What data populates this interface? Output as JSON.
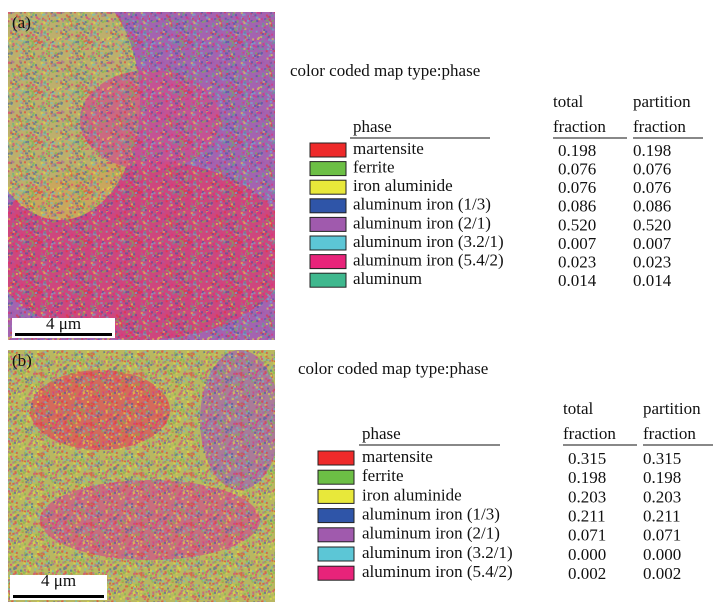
{
  "panels": [
    {
      "label": "(a)",
      "scale_bar": "4 μm",
      "legend_title": "color coded map type:phase",
      "columns": {
        "phase": "phase",
        "total": [
          "total",
          "fraction"
        ],
        "partition": [
          "partition",
          "fraction"
        ]
      },
      "rows": [
        {
          "name": "martensite",
          "color": "#ee2a2a",
          "total": "0.198",
          "partition": "0.198"
        },
        {
          "name": "ferrite",
          "color": "#6cbf45",
          "total": "0.076",
          "partition": "0.076"
        },
        {
          "name": "iron aluminide",
          "color": "#e8e83a",
          "total": "0.076",
          "partition": "0.076"
        },
        {
          "name": "aluminum iron (1/3)",
          "color": "#2f55a8",
          "total": "0.086",
          "partition": "0.086"
        },
        {
          "name": "aluminum iron (2/1)",
          "color": "#a05aad",
          "total": "0.520",
          "partition": "0.520"
        },
        {
          "name": "aluminum iron (3.2/1)",
          "color": "#5cc6d6",
          "total": "0.007",
          "partition": "0.007"
        },
        {
          "name": "aluminum iron (5.4/2)",
          "color": "#e8237a",
          "total": "0.023",
          "partition": "0.023"
        },
        {
          "name": "aluminum",
          "color": "#3fb88e",
          "total": "0.014",
          "partition": "0.014"
        }
      ]
    },
    {
      "label": "(b)",
      "scale_bar": "4 μm",
      "legend_title": "color coded map type:phase",
      "columns": {
        "phase": "phase",
        "total": [
          "total",
          "fraction"
        ],
        "partition": [
          "partition",
          "fraction"
        ]
      },
      "rows": [
        {
          "name": "martensite",
          "color": "#ee2a2a",
          "total": "0.315",
          "partition": "0.315"
        },
        {
          "name": "ferrite",
          "color": "#6cbf45",
          "total": "0.198",
          "partition": "0.198"
        },
        {
          "name": "iron aluminide",
          "color": "#e8e83a",
          "total": "0.203",
          "partition": "0.203"
        },
        {
          "name": "aluminum iron (1/3)",
          "color": "#2f55a8",
          "total": "0.211",
          "partition": "0.211"
        },
        {
          "name": "aluminum iron (2/1)",
          "color": "#a05aad",
          "total": "0.071",
          "partition": "0.071"
        },
        {
          "name": "aluminum iron (3.2/1)",
          "color": "#5cc6d6",
          "total": "0.000",
          "partition": "0.000"
        },
        {
          "name": "aluminum iron (5.4/2)",
          "color": "#e8237a",
          "total": "0.002",
          "partition": "0.002"
        }
      ]
    }
  ]
}
